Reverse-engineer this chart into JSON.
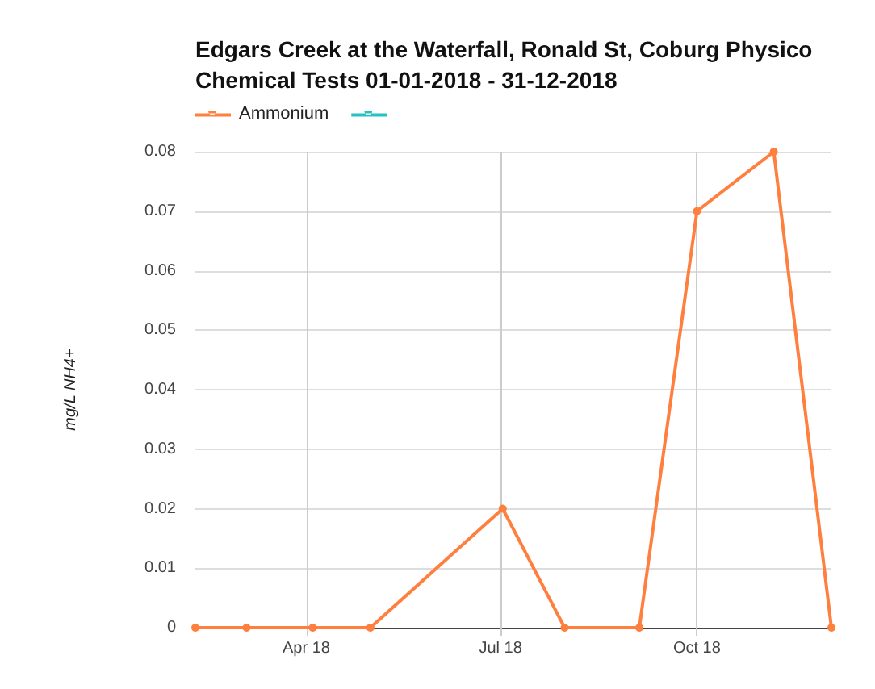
{
  "chart_data": {
    "type": "line",
    "title": "Edgars Creek at the Waterfall, Ronald St, Coburg Physico Chemical Tests 01-01-2018 - 31-12-2018",
    "ylabel": "mg/L NH4+",
    "x": [
      "2018-02-08",
      "2018-03-04",
      "2018-04-04",
      "2018-05-01",
      "2018-07-02",
      "2018-07-31",
      "2018-09-04",
      "2018-10-01",
      "2018-11-06",
      "2018-12-03"
    ],
    "series": [
      {
        "name": "Ammonium",
        "color": "#ff7f3f",
        "values": [
          0,
          0,
          0,
          0,
          0.02,
          0,
          0,
          0.07,
          0.08,
          0
        ]
      },
      {
        "color": "#26c1c1",
        "values": [
          null,
          null,
          null,
          null,
          null,
          null,
          null,
          null,
          null,
          null
        ]
      }
    ],
    "xlim": [
      "2018-02-08",
      "2018-12-03"
    ],
    "xticks": [
      {
        "value": "2018-04-01",
        "label": "Apr 18"
      },
      {
        "value": "2018-07-01",
        "label": "Jul 18"
      },
      {
        "value": "2018-10-01",
        "label": "Oct 18"
      }
    ],
    "ylim": [
      0,
      0.08
    ],
    "yticks": [
      0,
      0.01,
      0.02,
      0.03,
      0.04,
      0.05,
      0.06,
      0.07,
      0.08
    ],
    "grid": true,
    "legend": "top left",
    "marker": "circle",
    "line_style": "solid"
  }
}
